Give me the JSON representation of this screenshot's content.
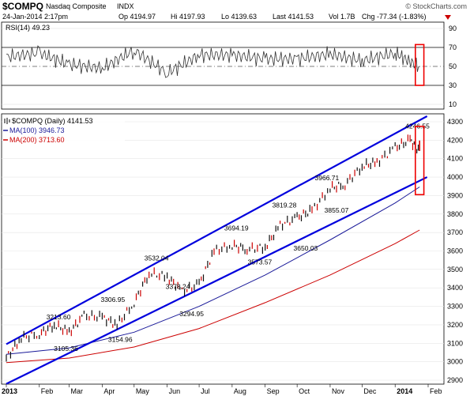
{
  "header": {
    "symbol": "$COMPQ",
    "name": "Nasdaq Composite",
    "exchange": "INDX",
    "datetime": "24-Jan-2014 2:17pm",
    "op": "Op 4194.97",
    "hi": "Hi 4197.93",
    "lo": "Lo 4139.63",
    "last": "Last 4141.53",
    "vol": "Vol 1.7B",
    "chg": "Chg -77.34 (-1.83%)",
    "watermark": "© StockCharts.com"
  },
  "colors": {
    "price_up": "#111111",
    "price_down": "#cc0000",
    "ma100": "#1a1a99",
    "ma200": "#cc0000",
    "channel": "#0000dd",
    "highlight_box": "#ee0000",
    "rsi_line": "#333333"
  },
  "rsi_panel": {
    "label": "RSI(14) 49.23",
    "y_ticks": [
      "90",
      "70",
      "50",
      "30",
      "10"
    ]
  },
  "price_panel": {
    "label": "$COMPQ (Daily) 4141.53",
    "legend": [
      {
        "text": "MA(100) 3946.73",
        "color": "#1a1a99"
      },
      {
        "text": "MA(200) 3713.60",
        "color": "#cc0000"
      }
    ],
    "y_ticks": [
      "4300",
      "4200",
      "4100",
      "4000",
      "3900",
      "3800",
      "3700",
      "3600",
      "3500",
      "3400",
      "3300",
      "3200",
      "3100",
      "3000",
      "2900"
    ]
  },
  "x_labels": [
    "2013",
    "Feb",
    "Mar",
    "Apr",
    "May",
    "Jun",
    "Jul",
    "Aug",
    "Sep",
    "Oct",
    "Nov",
    "Dec",
    "2014",
    "Feb"
  ],
  "chart_data": {
    "type": "line",
    "symbol": "$COMPQ",
    "period": "Daily",
    "x_range": [
      "2013-01",
      "2014-02"
    ],
    "ylim": [
      2900,
      4300
    ],
    "rsi_ylim": [
      10,
      90
    ],
    "annotations": [
      {
        "text": "3213.60",
        "date": "2013-02-19",
        "value": 3213.6
      },
      {
        "text": "3105.36",
        "date": "2013-02-26",
        "value": 3105.36
      },
      {
        "text": "3306.95",
        "date": "2013-04-11",
        "value": 3306.95
      },
      {
        "text": "3154.96",
        "date": "2013-04-18",
        "value": 3154.96
      },
      {
        "text": "3532.04",
        "date": "2013-05-22",
        "value": 3532.04
      },
      {
        "text": "3378.24",
        "date": "2013-06-11",
        "value": 3378.24
      },
      {
        "text": "3294.95",
        "date": "2013-06-24",
        "value": 3294.95
      },
      {
        "text": "3694.19",
        "date": "2013-08-05",
        "value": 3694.19
      },
      {
        "text": "3573.57",
        "date": "2013-08-27",
        "value": 3573.57
      },
      {
        "text": "3819.28",
        "date": "2013-09-19",
        "value": 3819.28
      },
      {
        "text": "3650.03",
        "date": "2013-10-09",
        "value": 3650.03
      },
      {
        "text": "3966.71",
        "date": "2013-10-29",
        "value": 3966.71
      },
      {
        "text": "3855.07",
        "date": "2013-11-07",
        "value": 3855.07
      },
      {
        "text": "4246.55",
        "date": "2014-01-22",
        "value": 4246.55
      }
    ],
    "series": [
      {
        "name": "$COMPQ",
        "x": [
          "2013-01-01",
          "2013-01-15",
          "2013-02-01",
          "2013-02-15",
          "2013-03-01",
          "2013-03-15",
          "2013-04-01",
          "2013-04-15",
          "2013-05-01",
          "2013-05-15",
          "2013-06-01",
          "2013-06-15",
          "2013-07-01",
          "2013-07-15",
          "2013-08-01",
          "2013-08-15",
          "2013-09-01",
          "2013-09-15",
          "2013-10-01",
          "2013-10-15",
          "2013-11-01",
          "2013-11-15",
          "2013-12-01",
          "2013-12-15",
          "2014-01-01",
          "2014-01-15",
          "2014-01-24"
        ],
        "values": [
          3020,
          3130,
          3150,
          3200,
          3160,
          3250,
          3240,
          3200,
          3320,
          3480,
          3460,
          3380,
          3420,
          3600,
          3630,
          3610,
          3620,
          3740,
          3780,
          3820,
          3940,
          3960,
          4060,
          4080,
          4160,
          4200,
          4141.53
        ]
      },
      {
        "name": "MA(100)",
        "x": [
          "2013-01-01",
          "2013-03-01",
          "2013-05-01",
          "2013-07-01",
          "2013-09-01",
          "2013-11-01",
          "2014-01-01",
          "2014-01-24"
        ],
        "values": [
          3040,
          3075,
          3160,
          3300,
          3470,
          3660,
          3860,
          3946.73
        ]
      },
      {
        "name": "MA(200)",
        "x": [
          "2013-01-01",
          "2013-03-01",
          "2013-05-01",
          "2013-07-01",
          "2013-09-01",
          "2013-11-01",
          "2014-01-01",
          "2014-01-24"
        ],
        "values": [
          2995,
          3020,
          3080,
          3180,
          3320,
          3470,
          3640,
          3713.6
        ]
      }
    ],
    "rsi_series": {
      "name": "RSI(14)",
      "x": [
        "2013-01-01",
        "2013-02-01",
        "2013-03-01",
        "2013-04-01",
        "2013-05-01",
        "2013-06-01",
        "2013-07-01",
        "2013-08-01",
        "2013-09-01",
        "2013-10-01",
        "2013-11-01",
        "2013-12-01",
        "2014-01-01",
        "2014-01-24"
      ],
      "values": [
        60,
        64,
        52,
        48,
        67,
        43,
        62,
        62,
        58,
        58,
        63,
        56,
        64,
        49.23
      ]
    },
    "channel_lines": [
      {
        "x": [
          "2013-01-01",
          "2014-01-31"
        ],
        "values": [
          3095,
          4330
        ]
      },
      {
        "x": [
          "2013-01-01",
          "2014-01-31"
        ],
        "values": [
          2880,
          4000
        ]
      }
    ],
    "highlight_boxes": [
      {
        "panel": "rsi",
        "x": [
          "2014-01-20",
          "2014-01-28"
        ],
        "y": [
          30,
          73
        ]
      },
      {
        "panel": "price",
        "x": [
          "2014-01-20",
          "2014-01-28"
        ],
        "y": [
          3905,
          4275
        ]
      }
    ]
  }
}
